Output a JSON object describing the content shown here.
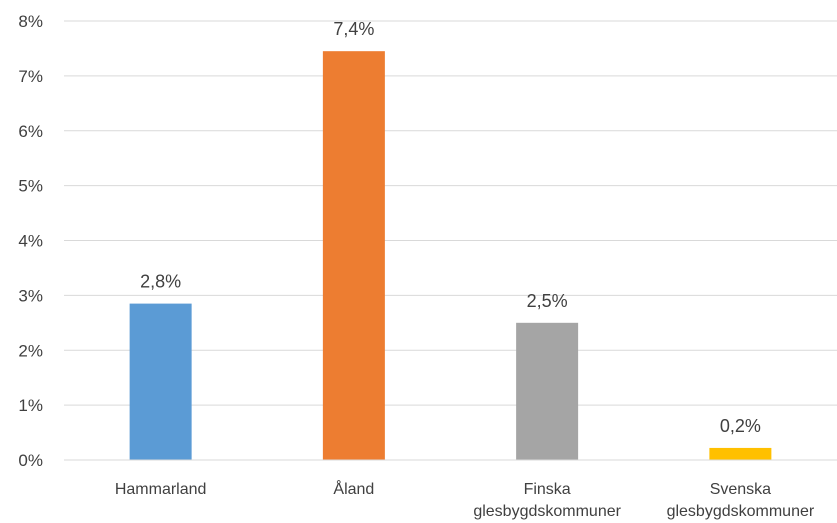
{
  "chart_data": {
    "type": "bar",
    "categories": [
      [
        "Hammarland"
      ],
      [
        "Åland"
      ],
      [
        "Finska",
        "glesbygdskommuner"
      ],
      [
        "Svenska",
        "glesbygdskommuner"
      ]
    ],
    "values": [
      2.85,
      7.45,
      2.5,
      0.22
    ],
    "data_labels": [
      "2,8%",
      "7,4%",
      "2,5%",
      "0,2%"
    ],
    "colors": [
      "#5b9bd5",
      "#ed7d31",
      "#a5a5a5",
      "#ffc000"
    ],
    "ylim": [
      0,
      8
    ],
    "yticks": [
      0,
      1,
      2,
      3,
      4,
      5,
      6,
      7,
      8
    ],
    "ytick_labels": [
      "0%",
      "1%",
      "2%",
      "3%",
      "4%",
      "5%",
      "6%",
      "7%",
      "8%"
    ],
    "grid": true,
    "legend": "none",
    "title": "",
    "xlabel": "",
    "ylabel": ""
  }
}
